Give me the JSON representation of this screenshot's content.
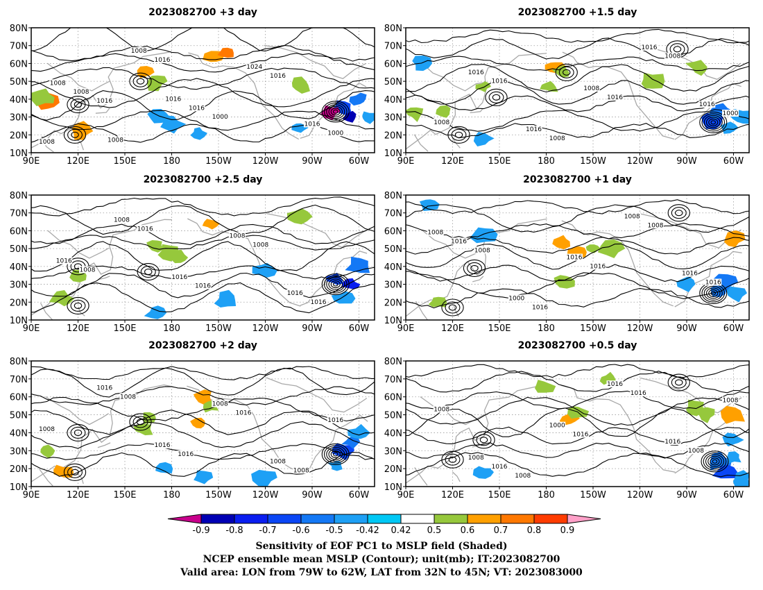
{
  "panels": [
    {
      "id": "p1",
      "title": "2023082700  +3 day",
      "contour_labels": [
        "1008",
        "1016",
        "1016",
        "1000",
        "1016",
        "1000",
        "1008",
        "1008",
        "1016",
        "1024",
        "1016",
        "1008",
        "1008",
        "1016"
      ],
      "positive_blobs": [
        [
          100,
          38,
          0.7
        ],
        [
          98,
          41,
          0.55
        ],
        [
          122,
          22,
          0.6
        ],
        [
          163,
          55,
          0.6
        ],
        [
          170,
          50,
          0.55
        ],
        [
          208,
          64,
          0.65
        ],
        [
          215,
          66,
          0.7
        ],
        [
          262,
          48,
          0.5
        ]
      ],
      "negative_blobs": [
        [
          290,
          35,
          -0.7
        ],
        [
          295,
          30,
          -0.85
        ],
        [
          282,
          33,
          -0.9
        ],
        [
          300,
          40,
          -0.6
        ],
        [
          306,
          30,
          -0.5
        ],
        [
          172,
          30,
          -0.5
        ],
        [
          180,
          26,
          -0.45
        ],
        [
          197,
          21,
          -0.45
        ],
        [
          262,
          24,
          -0.45
        ]
      ],
      "centers": [
        [
          285,
          33
        ],
        [
          118,
          20
        ],
        [
          120,
          37
        ],
        [
          160,
          50
        ]
      ]
    },
    {
      "id": "p2",
      "title": "2023082700  +1.5 day",
      "contour_labels": [
        "1008",
        "1016",
        "1008",
        "1016",
        "1008",
        "1000",
        "1016",
        "1016",
        "1008",
        "1016",
        "1016"
      ],
      "positive_blobs": [
        [
          185,
          58,
          0.6
        ],
        [
          190,
          55,
          0.55
        ],
        [
          182,
          47,
          0.5
        ],
        [
          115,
          33,
          0.5
        ],
        [
          96,
          32,
          0.5
        ],
        [
          140,
          47,
          0.5
        ],
        [
          247,
          50,
          0.5
        ],
        [
          278,
          58,
          0.5
        ]
      ],
      "negative_blobs": [
        [
          287,
          28,
          -0.7
        ],
        [
          292,
          33,
          -0.6
        ],
        [
          297,
          24,
          -0.5
        ],
        [
          305,
          30,
          -0.5
        ],
        [
          100,
          60,
          -0.45
        ],
        [
          140,
          18,
          -0.45
        ]
      ],
      "centers": [
        [
          287,
          27
        ],
        [
          148,
          41
        ],
        [
          124,
          20
        ],
        [
          264,
          68
        ],
        [
          193,
          55
        ]
      ]
    },
    {
      "id": "p3",
      "title": "2023082700  +2.5 day",
      "contour_labels": [
        "1008",
        "1016",
        "1016",
        "1008",
        "1016",
        "1016",
        "1008",
        "1016",
        "1008",
        "1016"
      ],
      "positive_blobs": [
        [
          170,
          52,
          0.5
        ],
        [
          178,
          48,
          0.55
        ],
        [
          185,
          45,
          0.5
        ],
        [
          205,
          64,
          0.6
        ],
        [
          120,
          35,
          0.5
        ],
        [
          110,
          22,
          0.5
        ],
        [
          262,
          68,
          0.5
        ]
      ],
      "negative_blobs": [
        [
          285,
          33,
          -0.7
        ],
        [
          295,
          30,
          -0.8
        ],
        [
          300,
          40,
          -0.6
        ],
        [
          290,
          22,
          -0.5
        ],
        [
          240,
          38,
          -0.45
        ],
        [
          170,
          14,
          -0.45
        ],
        [
          215,
          21,
          -0.45
        ]
      ],
      "centers": [
        [
          285,
          30
        ],
        [
          120,
          18
        ],
        [
          120,
          40
        ],
        [
          165,
          37
        ]
      ]
    },
    {
      "id": "p4",
      "title": "2023082700  +1 day",
      "contour_labels": [
        "1008",
        "1016",
        "1016",
        "1008",
        "1016",
        "1016",
        "1000",
        "1016",
        "1008",
        "1016",
        "1008"
      ],
      "positive_blobs": [
        [
          190,
          54,
          0.65
        ],
        [
          200,
          48,
          0.6
        ],
        [
          210,
          50,
          0.5
        ],
        [
          222,
          50,
          0.5
        ],
        [
          300,
          55,
          0.6
        ],
        [
          110,
          20,
          0.5
        ],
        [
          192,
          32,
          0.5
        ]
      ],
      "negative_blobs": [
        [
          290,
          27,
          -0.6
        ],
        [
          295,
          31,
          -0.55
        ],
        [
          302,
          25,
          -0.5
        ],
        [
          270,
          30,
          -0.45
        ],
        [
          140,
          58,
          -0.45
        ],
        [
          105,
          75,
          -0.45
        ]
      ],
      "centers": [
        [
          287,
          25
        ],
        [
          134,
          39
        ],
        [
          120,
          17
        ],
        [
          265,
          70
        ]
      ]
    },
    {
      "id": "p5",
      "title": "2023082700  +2 day",
      "contour_labels": [
        "1008",
        "1016",
        "1016",
        "1008",
        "1008",
        "1016",
        "1016",
        "1008",
        "1008",
        "1016"
      ],
      "positive_blobs": [
        [
          200,
          60,
          0.6
        ],
        [
          205,
          55,
          0.55
        ],
        [
          198,
          45,
          0.65
        ],
        [
          165,
          48,
          0.5
        ],
        [
          110,
          18,
          0.6
        ],
        [
          100,
          30,
          0.5
        ],
        [
          162,
          42,
          0.5
        ]
      ],
      "negative_blobs": [
        [
          290,
          30,
          -0.7
        ],
        [
          295,
          35,
          -0.6
        ],
        [
          300,
          40,
          -0.5
        ],
        [
          285,
          22,
          -0.5
        ],
        [
          175,
          20,
          -0.45
        ],
        [
          200,
          15,
          -0.45
        ],
        [
          240,
          15,
          -0.45
        ]
      ],
      "centers": [
        [
          285,
          28
        ],
        [
          118,
          18
        ],
        [
          120,
          40
        ],
        [
          160,
          46
        ]
      ]
    },
    {
      "id": "p6",
      "title": "2023082700  +0.5 day",
      "contour_labels": [
        "1008",
        "1016",
        "1016",
        "1008",
        "1008",
        "1016",
        "1000",
        "1016",
        "1016",
        "1008",
        "1008"
      ],
      "positive_blobs": [
        [
          195,
          48,
          0.6
        ],
        [
          200,
          52,
          0.55
        ],
        [
          275,
          54,
          0.5
        ],
        [
          282,
          50,
          0.5
        ],
        [
          300,
          50,
          0.6
        ],
        [
          178,
          66,
          0.5
        ],
        [
          220,
          70,
          0.5
        ]
      ],
      "negative_blobs": [
        [
          290,
          24,
          -0.6
        ],
        [
          295,
          18,
          -0.7
        ],
        [
          300,
          26,
          -0.5
        ],
        [
          305,
          14,
          -0.5
        ],
        [
          300,
          36,
          -0.45
        ],
        [
          140,
          18,
          -0.45
        ]
      ],
      "centers": [
        [
          288,
          24
        ],
        [
          140,
          36
        ],
        [
          265,
          68
        ],
        [
          120,
          25
        ]
      ]
    }
  ],
  "axes": {
    "lon_ticks": [
      "90E",
      "120E",
      "150E",
      "180",
      "150W",
      "120W",
      "90W",
      "60W"
    ],
    "lon_values": [
      90,
      120,
      150,
      180,
      210,
      240,
      270,
      300
    ],
    "lat_ticks": [
      "10N",
      "20N",
      "30N",
      "40N",
      "50N",
      "60N",
      "70N",
      "80N"
    ],
    "lat_values": [
      10,
      20,
      30,
      40,
      50,
      60,
      70,
      80
    ],
    "lon_range": [
      90,
      310
    ],
    "lat_range": [
      10,
      80
    ]
  },
  "colorbar": {
    "levels": [
      "-0.9",
      "-0.8",
      "-0.7",
      "-0.6",
      "-0.5",
      "-0.42",
      "0.42",
      "0.5",
      "0.6",
      "0.7",
      "0.8",
      "0.9"
    ],
    "colors": [
      "#0000b4",
      "#0a1ef0",
      "#0a46f5",
      "#1478f5",
      "#1ea0f5",
      "#00c8f5",
      "#ffffff",
      "#96c83c",
      "#ffa000",
      "#ff7800",
      "#ff3c00",
      "#ff0000"
    ],
    "under_color": "#c8008c",
    "over_color": "#ffa0c8"
  },
  "footer": {
    "line1": "Sensitivity of EOF PC1 to MSLP field (Shaded)",
    "line2": "NCEP ensemble mean MSLP (Contour); unit(mb); IT:2023082700",
    "line3": "Valid area: LON from 79W to 62W, LAT from 32N to 45N; VT: 2023083000"
  }
}
